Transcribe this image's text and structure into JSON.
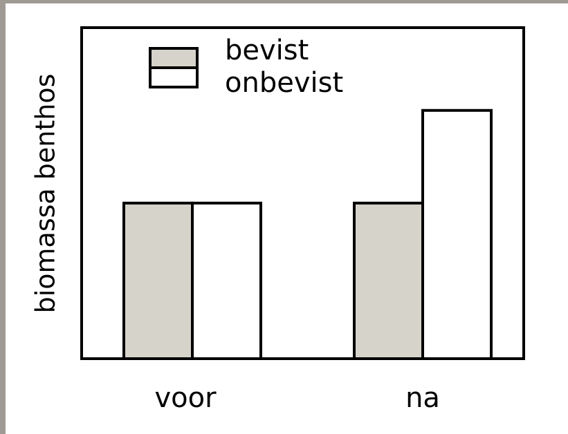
{
  "chart_data": {
    "type": "bar",
    "y_label": "biomassa benthos",
    "categories": [
      "voor",
      "na"
    ],
    "series": [
      {
        "name": "bevist",
        "color": "#d6d3cb",
        "values": [
          47,
          47
        ]
      },
      {
        "name": "onbevist",
        "color": "#ffffff",
        "values": [
          47,
          75
        ]
      }
    ],
    "ylim": [
      0,
      100
    ]
  }
}
